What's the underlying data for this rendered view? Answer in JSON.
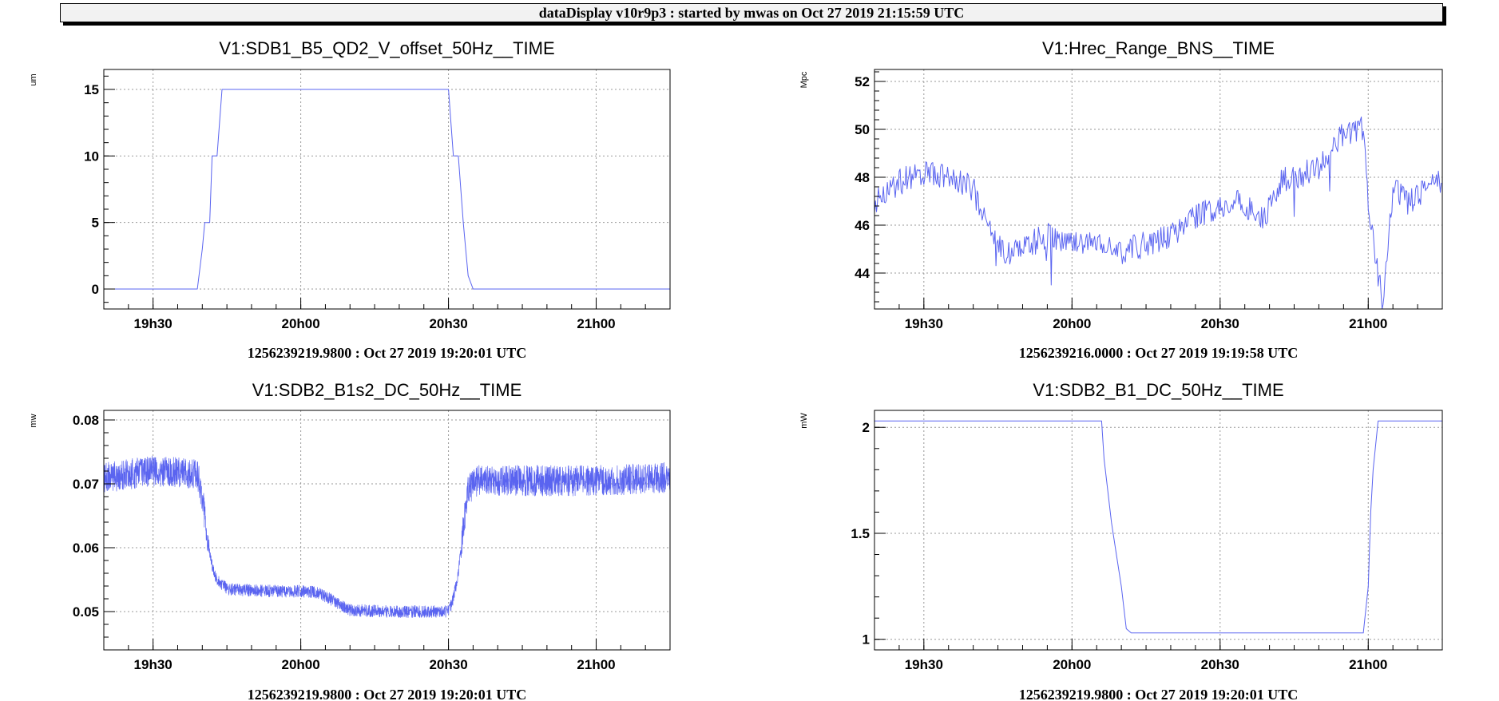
{
  "banner": "dataDisplay v10r9p3 : started by mwas on Oct 27 2019 21:15:59 UTC",
  "colors": {
    "series": "#5a64f0",
    "grid": "#9a9a9a",
    "axis": "#000000"
  },
  "chart_data": [
    {
      "type": "line",
      "title": "V1:SDB1_B5_QD2_V_offset_50Hz__TIME",
      "ylabel": "um",
      "xlabel": "1256239219.9800 : Oct 27 2019 19:20:01 UTC",
      "xlim": [
        "19h20",
        "21h15"
      ],
      "ylim": [
        -1.5,
        16.5
      ],
      "yticks": [
        0,
        5,
        10,
        15
      ],
      "ytick_labels": [
        "0",
        "5",
        "10",
        "15"
      ],
      "xticks": [
        "19h30",
        "20h00",
        "20h30",
        "21h00"
      ],
      "grid": true,
      "series": [
        {
          "x": [
            "19h20",
            "19h39",
            "19h40",
            "19h40.5",
            "19h41.5",
            "19h42",
            "19h43",
            "19h44",
            "20h30",
            "20h31",
            "20h32",
            "20h33",
            "20h33.5",
            "20h34",
            "20h35",
            "21h15"
          ],
          "values": [
            0,
            0,
            3,
            5,
            5,
            10,
            10,
            15,
            15,
            10,
            10,
            5,
            3,
            1,
            0,
            0
          ]
        }
      ]
    },
    {
      "type": "line",
      "title": "V1:Hrec_Range_BNS__TIME",
      "ylabel": "Mpc",
      "xlabel": "1256239216.0000 : Oct 27 2019 19:19:58 UTC",
      "xlim": [
        "19h20",
        "21h15"
      ],
      "ylim": [
        42.5,
        52.5
      ],
      "yticks": [
        44,
        46,
        48,
        50,
        52
      ],
      "ytick_labels": [
        "44",
        "46",
        "48",
        "50",
        "52"
      ],
      "xticks": [
        "19h30",
        "20h00",
        "20h30",
        "21h00"
      ],
      "grid": true,
      "series": [
        {
          "x": [
            "19h20",
            "19h25",
            "19h30",
            "19h35",
            "19h40",
            "19h43",
            "19h46",
            "19h50",
            "19h55",
            "20h00",
            "20h05",
            "20h10",
            "20h15",
            "20h20",
            "20h25",
            "20h30",
            "20h33",
            "20h36",
            "20h39",
            "20h42",
            "20h45",
            "20h50",
            "20h55",
            "20h59",
            "21h00",
            "21h03",
            "21h05",
            "21h08",
            "21h10",
            "21h12",
            "21h15"
          ],
          "values": [
            47.0,
            47.8,
            48.2,
            48.0,
            47.5,
            45.8,
            44.8,
            45.0,
            45.6,
            45.2,
            45.5,
            44.9,
            45.2,
            45.6,
            46.3,
            46.8,
            47.0,
            46.6,
            46.3,
            47.8,
            48.0,
            48.4,
            49.8,
            50.0,
            47.0,
            42.5,
            47.5,
            47.0,
            47.2,
            47.5,
            47.8
          ]
        }
      ]
    },
    {
      "type": "line",
      "title": "V1:SDB2_B1s2_DC_50Hz__TIME",
      "ylabel": "mw",
      "xlabel": "1256239219.9800 : Oct 27 2019 19:20:01 UTC",
      "xlim": [
        "19h20",
        "21h15"
      ],
      "ylim": [
        0.044,
        0.0815
      ],
      "yticks": [
        0.05,
        0.06,
        0.07,
        0.08
      ],
      "ytick_labels": [
        "0.05",
        "0.06",
        "0.07",
        "0.08"
      ],
      "xticks": [
        "19h30",
        "20h00",
        "20h30",
        "21h00"
      ],
      "grid": true,
      "series": [
        {
          "x": [
            "19h20",
            "19h30",
            "19h39",
            "19h40",
            "19h41",
            "19h42",
            "19h43",
            "19h45",
            "19h50",
            "19h55",
            "20h00",
            "20h03",
            "20h06",
            "20h08",
            "20h10",
            "20h20",
            "20h30",
            "20h31",
            "20h32",
            "20h33",
            "20h34",
            "20h36",
            "20h45",
            "21h00",
            "21h15"
          ],
          "values": [
            0.071,
            0.072,
            0.0715,
            0.068,
            0.062,
            0.057,
            0.055,
            0.0535,
            0.0533,
            0.0532,
            0.0532,
            0.053,
            0.052,
            0.051,
            0.0502,
            0.05,
            0.05,
            0.052,
            0.056,
            0.063,
            0.069,
            0.0705,
            0.0705,
            0.0705,
            0.071
          ]
        }
      ]
    },
    {
      "type": "line",
      "title": "V1:SDB2_B1_DC_50Hz__TIME",
      "ylabel": "mW",
      "xlabel": "1256239219.9800 : Oct 27 2019 19:20:01 UTC",
      "xlim": [
        "19h20",
        "21h15"
      ],
      "ylim": [
        0.95,
        2.08
      ],
      "yticks": [
        1,
        1.5,
        2
      ],
      "ytick_labels": [
        "1",
        "1.5",
        "2"
      ],
      "xticks": [
        "19h30",
        "20h00",
        "20h30",
        "21h00"
      ],
      "grid": true,
      "series": [
        {
          "x": [
            "19h20",
            "20h06",
            "20h06.5",
            "20h07",
            "20h08",
            "20h09",
            "20h10",
            "20h10.5",
            "20h11",
            "20h12",
            "20h59",
            "21h00",
            "21h00.5",
            "21h01",
            "21h02",
            "21h15"
          ],
          "values": [
            2.03,
            2.03,
            1.85,
            1.75,
            1.55,
            1.4,
            1.25,
            1.15,
            1.05,
            1.03,
            1.03,
            1.25,
            1.6,
            1.8,
            2.03,
            2.03
          ]
        }
      ]
    }
  ]
}
